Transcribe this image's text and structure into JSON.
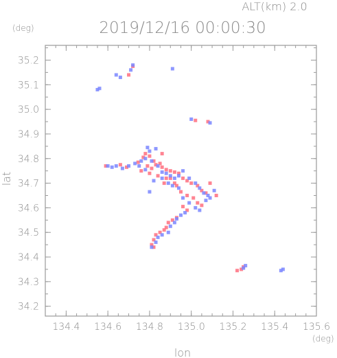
{
  "chart_data": {
    "type": "scatter",
    "title": "2019/12/16 00:00:30",
    "subtitle": "ALT(km) 2.0",
    "xlabel": "lon",
    "ylabel": "lat",
    "xunit": "(deg)",
    "yunit": "(deg)",
    "xlim": [
      134.3,
      135.6
    ],
    "ylim": [
      34.16,
      35.26
    ],
    "xticks": [
      "134.4",
      "134.6",
      "134.8",
      "135.0",
      "135.2",
      "135.4",
      "135.6"
    ],
    "yticks": [
      "34.2",
      "34.3",
      "34.4",
      "34.5",
      "34.6",
      "34.7",
      "34.8",
      "34.9",
      "35.0",
      "35.1",
      "35.2"
    ],
    "grid": false,
    "colors": {
      "positive": "#ff6f7f",
      "negative": "#7a86ff",
      "frame": "#9a9a9a"
    },
    "series": [
      {
        "color": "positive",
        "points": [
          [
            134.72,
            35.175
          ],
          [
            134.7,
            35.14
          ],
          [
            134.59,
            34.77
          ],
          [
            134.66,
            34.775
          ],
          [
            134.69,
            34.765
          ],
          [
            134.745,
            34.785
          ],
          [
            134.77,
            34.805
          ],
          [
            134.78,
            34.82
          ],
          [
            134.8,
            34.81
          ],
          [
            134.82,
            34.79
          ],
          [
            134.83,
            34.775
          ],
          [
            134.85,
            34.78
          ],
          [
            134.86,
            34.765
          ],
          [
            134.88,
            34.755
          ],
          [
            134.9,
            34.75
          ],
          [
            134.92,
            34.745
          ],
          [
            134.94,
            34.74
          ],
          [
            134.96,
            34.72
          ],
          [
            134.98,
            34.71
          ],
          [
            135.0,
            34.7
          ],
          [
            135.03,
            34.69
          ],
          [
            135.05,
            34.67
          ],
          [
            135.07,
            34.66
          ],
          [
            134.93,
            34.69
          ],
          [
            134.95,
            34.665
          ],
          [
            134.98,
            34.65
          ],
          [
            135.01,
            34.64
          ],
          [
            135.03,
            34.62
          ],
          [
            135.05,
            34.61
          ],
          [
            134.96,
            34.605
          ],
          [
            134.98,
            34.59
          ],
          [
            134.93,
            34.56
          ],
          [
            134.91,
            34.55
          ],
          [
            134.89,
            34.54
          ],
          [
            134.88,
            34.52
          ],
          [
            134.87,
            34.51
          ],
          [
            134.85,
            34.5
          ],
          [
            134.83,
            34.49
          ],
          [
            134.82,
            34.47
          ],
          [
            134.81,
            34.45
          ],
          [
            134.82,
            34.44
          ],
          [
            135.25,
            34.36
          ],
          [
            135.24,
            34.35
          ],
          [
            135.22,
            34.345
          ],
          [
            135.08,
            34.95
          ],
          [
            135.02,
            34.955
          ],
          [
            134.86,
            34.82
          ],
          [
            134.8,
            34.74
          ],
          [
            134.84,
            34.73
          ],
          [
            134.88,
            34.72
          ],
          [
            134.9,
            34.72
          ],
          [
            134.87,
            34.7
          ],
          [
            134.92,
            34.7
          ],
          [
            135.09,
            34.7
          ],
          [
            135.12,
            34.65
          ],
          [
            134.76,
            34.75
          ],
          [
            134.79,
            34.77
          ],
          [
            134.81,
            34.76
          ]
        ]
      },
      {
        "color": "negative",
        "points": [
          [
            134.55,
            35.08
          ],
          [
            134.56,
            35.085
          ],
          [
            134.72,
            35.18
          ],
          [
            134.71,
            35.16
          ],
          [
            134.66,
            35.13
          ],
          [
            134.64,
            35.14
          ],
          [
            134.6,
            34.77
          ],
          [
            134.62,
            34.765
          ],
          [
            134.64,
            34.77
          ],
          [
            134.67,
            34.76
          ],
          [
            134.7,
            34.77
          ],
          [
            134.73,
            34.78
          ],
          [
            134.76,
            34.79
          ],
          [
            134.78,
            34.8
          ],
          [
            134.8,
            34.83
          ],
          [
            134.79,
            34.845
          ],
          [
            134.83,
            34.84
          ],
          [
            134.81,
            34.79
          ],
          [
            134.84,
            34.77
          ],
          [
            134.86,
            34.745
          ],
          [
            134.88,
            34.74
          ],
          [
            134.9,
            34.73
          ],
          [
            134.92,
            34.72
          ],
          [
            134.94,
            34.73
          ],
          [
            134.96,
            34.75
          ],
          [
            134.99,
            34.72
          ],
          [
            135.02,
            34.7
          ],
          [
            135.04,
            34.68
          ],
          [
            135.06,
            34.66
          ],
          [
            135.08,
            34.65
          ],
          [
            135.09,
            34.64
          ],
          [
            134.94,
            34.68
          ],
          [
            134.96,
            34.64
          ],
          [
            134.99,
            34.62
          ],
          [
            135.02,
            34.6
          ],
          [
            135.04,
            34.59
          ],
          [
            134.97,
            34.58
          ],
          [
            134.95,
            34.57
          ],
          [
            134.93,
            34.555
          ],
          [
            134.92,
            34.54
          ],
          [
            134.9,
            34.525
          ],
          [
            134.89,
            34.5
          ],
          [
            134.86,
            34.49
          ],
          [
            134.84,
            34.48
          ],
          [
            134.83,
            34.46
          ],
          [
            134.81,
            34.44
          ],
          [
            135.26,
            34.365
          ],
          [
            135.25,
            34.355
          ],
          [
            135.44,
            34.35
          ],
          [
            135.43,
            34.345
          ],
          [
            135.0,
            34.96
          ],
          [
            135.09,
            34.945
          ],
          [
            134.91,
            35.165
          ],
          [
            134.8,
            34.665
          ],
          [
            134.82,
            34.71
          ],
          [
            134.86,
            34.72
          ],
          [
            134.89,
            34.7
          ],
          [
            134.91,
            34.69
          ],
          [
            135.11,
            34.67
          ],
          [
            135.07,
            34.63
          ],
          [
            134.75,
            34.77
          ],
          [
            134.78,
            34.755
          ]
        ]
      }
    ]
  }
}
